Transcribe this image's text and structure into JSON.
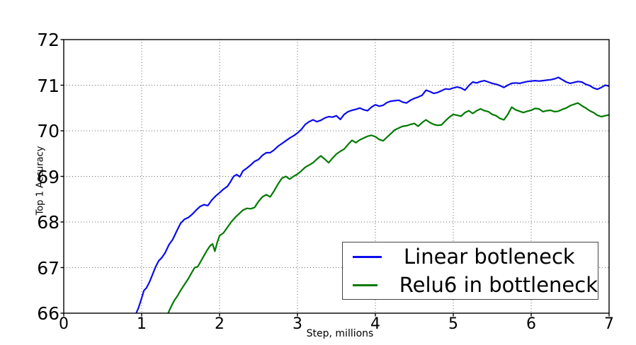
{
  "chart_data": {
    "type": "line",
    "title": "",
    "xlabel": "Step, millions",
    "ylabel": "Top 1 Accuracy",
    "xlim": [
      0,
      7
    ],
    "ylim": [
      66,
      72
    ],
    "x_ticks": [
      "0",
      "1",
      "2",
      "3",
      "4",
      "5",
      "6",
      "7"
    ],
    "y_ticks": [
      "66",
      "67",
      "68",
      "69",
      "70",
      "71",
      "72"
    ],
    "grid": "dotted",
    "legend_position": "lower right",
    "series": [
      {
        "name": "Linear botleneck",
        "color": "#0b0bee",
        "points": [
          [
            0.93,
            66.0
          ],
          [
            0.96,
            66.12
          ],
          [
            1.0,
            66.33
          ],
          [
            1.03,
            66.5
          ],
          [
            1.06,
            66.55
          ],
          [
            1.1,
            66.68
          ],
          [
            1.14,
            66.85
          ],
          [
            1.18,
            67.02
          ],
          [
            1.22,
            67.15
          ],
          [
            1.26,
            67.22
          ],
          [
            1.3,
            67.32
          ],
          [
            1.35,
            67.5
          ],
          [
            1.4,
            67.62
          ],
          [
            1.45,
            67.8
          ],
          [
            1.5,
            67.97
          ],
          [
            1.55,
            68.06
          ],
          [
            1.6,
            68.1
          ],
          [
            1.65,
            68.17
          ],
          [
            1.7,
            68.26
          ],
          [
            1.75,
            68.34
          ],
          [
            1.8,
            68.38
          ],
          [
            1.85,
            68.36
          ],
          [
            1.9,
            68.48
          ],
          [
            1.95,
            68.57
          ],
          [
            2.0,
            68.64
          ],
          [
            2.05,
            68.72
          ],
          [
            2.1,
            68.78
          ],
          [
            2.14,
            68.88
          ],
          [
            2.18,
            69.0
          ],
          [
            2.22,
            69.04
          ],
          [
            2.26,
            68.99
          ],
          [
            2.3,
            69.12
          ],
          [
            2.35,
            69.18
          ],
          [
            2.4,
            69.25
          ],
          [
            2.45,
            69.33
          ],
          [
            2.5,
            69.37
          ],
          [
            2.55,
            69.46
          ],
          [
            2.6,
            69.52
          ],
          [
            2.65,
            69.52
          ],
          [
            2.7,
            69.58
          ],
          [
            2.75,
            69.66
          ],
          [
            2.8,
            69.72
          ],
          [
            2.85,
            69.78
          ],
          [
            2.9,
            69.84
          ],
          [
            2.95,
            69.89
          ],
          [
            3.0,
            69.95
          ],
          [
            3.05,
            70.03
          ],
          [
            3.1,
            70.14
          ],
          [
            3.15,
            70.2
          ],
          [
            3.2,
            70.24
          ],
          [
            3.25,
            70.2
          ],
          [
            3.3,
            70.23
          ],
          [
            3.35,
            70.28
          ],
          [
            3.4,
            70.31
          ],
          [
            3.45,
            70.3
          ],
          [
            3.5,
            70.33
          ],
          [
            3.55,
            70.25
          ],
          [
            3.6,
            70.36
          ],
          [
            3.65,
            70.42
          ],
          [
            3.7,
            70.45
          ],
          [
            3.75,
            70.47
          ],
          [
            3.8,
            70.5
          ],
          [
            3.85,
            70.46
          ],
          [
            3.9,
            70.44
          ],
          [
            3.95,
            70.52
          ],
          [
            4.0,
            70.57
          ],
          [
            4.05,
            70.54
          ],
          [
            4.1,
            70.56
          ],
          [
            4.15,
            70.62
          ],
          [
            4.2,
            70.65
          ],
          [
            4.25,
            70.66
          ],
          [
            4.3,
            70.67
          ],
          [
            4.35,
            70.63
          ],
          [
            4.4,
            70.61
          ],
          [
            4.45,
            70.67
          ],
          [
            4.5,
            70.71
          ],
          [
            4.55,
            70.74
          ],
          [
            4.6,
            70.78
          ],
          [
            4.65,
            70.89
          ],
          [
            4.7,
            70.86
          ],
          [
            4.75,
            70.82
          ],
          [
            4.8,
            70.84
          ],
          [
            4.85,
            70.88
          ],
          [
            4.9,
            70.92
          ],
          [
            4.95,
            70.91
          ],
          [
            5.0,
            70.94
          ],
          [
            5.05,
            70.96
          ],
          [
            5.1,
            70.94
          ],
          [
            5.15,
            70.89
          ],
          [
            5.2,
            70.99
          ],
          [
            5.25,
            71.07
          ],
          [
            5.3,
            71.05
          ],
          [
            5.35,
            71.08
          ],
          [
            5.4,
            71.1
          ],
          [
            5.45,
            71.07
          ],
          [
            5.5,
            71.04
          ],
          [
            5.55,
            71.02
          ],
          [
            5.6,
            70.99
          ],
          [
            5.65,
            70.95
          ],
          [
            5.7,
            71.0
          ],
          [
            5.75,
            71.04
          ],
          [
            5.8,
            71.05
          ],
          [
            5.85,
            71.04
          ],
          [
            5.9,
            71.06
          ],
          [
            5.95,
            71.08
          ],
          [
            6.0,
            71.09
          ],
          [
            6.05,
            71.1
          ],
          [
            6.1,
            71.09
          ],
          [
            6.15,
            71.1
          ],
          [
            6.2,
            71.11
          ],
          [
            6.25,
            71.12
          ],
          [
            6.3,
            71.14
          ],
          [
            6.35,
            71.17
          ],
          [
            6.4,
            71.12
          ],
          [
            6.45,
            71.07
          ],
          [
            6.5,
            71.04
          ],
          [
            6.55,
            71.06
          ],
          [
            6.6,
            71.08
          ],
          [
            6.65,
            71.07
          ],
          [
            6.7,
            71.02
          ],
          [
            6.75,
            70.99
          ],
          [
            6.8,
            70.94
          ],
          [
            6.85,
            70.91
          ],
          [
            6.9,
            70.95
          ],
          [
            6.95,
            71.0
          ],
          [
            7.0,
            70.98
          ]
        ]
      },
      {
        "name": "Relu6 in bottleneck",
        "color": "#007a00",
        "points": [
          [
            1.34,
            66.0
          ],
          [
            1.38,
            66.15
          ],
          [
            1.42,
            66.28
          ],
          [
            1.46,
            66.38
          ],
          [
            1.5,
            66.5
          ],
          [
            1.55,
            66.63
          ],
          [
            1.6,
            66.76
          ],
          [
            1.64,
            66.88
          ],
          [
            1.68,
            67.0
          ],
          [
            1.72,
            67.02
          ],
          [
            1.76,
            67.14
          ],
          [
            1.8,
            67.26
          ],
          [
            1.84,
            67.38
          ],
          [
            1.88,
            67.48
          ],
          [
            1.91,
            67.52
          ],
          [
            1.94,
            67.36
          ],
          [
            1.97,
            67.55
          ],
          [
            2.0,
            67.7
          ],
          [
            2.05,
            67.76
          ],
          [
            2.1,
            67.88
          ],
          [
            2.15,
            68.0
          ],
          [
            2.2,
            68.1
          ],
          [
            2.25,
            68.18
          ],
          [
            2.3,
            68.26
          ],
          [
            2.35,
            68.3
          ],
          [
            2.4,
            68.29
          ],
          [
            2.45,
            68.32
          ],
          [
            2.5,
            68.45
          ],
          [
            2.55,
            68.55
          ],
          [
            2.6,
            68.6
          ],
          [
            2.65,
            68.55
          ],
          [
            2.7,
            68.68
          ],
          [
            2.75,
            68.83
          ],
          [
            2.8,
            68.96
          ],
          [
            2.85,
            69.0
          ],
          [
            2.9,
            68.94
          ],
          [
            2.95,
            69.0
          ],
          [
            3.0,
            69.05
          ],
          [
            3.05,
            69.12
          ],
          [
            3.1,
            69.2
          ],
          [
            3.15,
            69.25
          ],
          [
            3.2,
            69.3
          ],
          [
            3.25,
            69.38
          ],
          [
            3.3,
            69.45
          ],
          [
            3.35,
            69.38
          ],
          [
            3.4,
            69.3
          ],
          [
            3.45,
            69.4
          ],
          [
            3.5,
            69.49
          ],
          [
            3.55,
            69.55
          ],
          [
            3.6,
            69.6
          ],
          [
            3.65,
            69.7
          ],
          [
            3.7,
            69.79
          ],
          [
            3.75,
            69.74
          ],
          [
            3.8,
            69.8
          ],
          [
            3.85,
            69.84
          ],
          [
            3.9,
            69.88
          ],
          [
            3.95,
            69.9
          ],
          [
            4.0,
            69.87
          ],
          [
            4.05,
            69.81
          ],
          [
            4.1,
            69.78
          ],
          [
            4.15,
            69.86
          ],
          [
            4.2,
            69.94
          ],
          [
            4.25,
            70.02
          ],
          [
            4.3,
            70.06
          ],
          [
            4.35,
            70.1
          ],
          [
            4.4,
            70.11
          ],
          [
            4.45,
            70.14
          ],
          [
            4.5,
            70.16
          ],
          [
            4.55,
            70.1
          ],
          [
            4.6,
            70.18
          ],
          [
            4.65,
            70.24
          ],
          [
            4.7,
            70.18
          ],
          [
            4.75,
            70.14
          ],
          [
            4.8,
            70.12
          ],
          [
            4.85,
            70.13
          ],
          [
            4.9,
            70.22
          ],
          [
            4.95,
            70.3
          ],
          [
            5.0,
            70.36
          ],
          [
            5.05,
            70.34
          ],
          [
            5.1,
            70.32
          ],
          [
            5.15,
            70.4
          ],
          [
            5.2,
            70.44
          ],
          [
            5.25,
            70.38
          ],
          [
            5.3,
            70.44
          ],
          [
            5.35,
            70.48
          ],
          [
            5.4,
            70.44
          ],
          [
            5.45,
            70.42
          ],
          [
            5.5,
            70.36
          ],
          [
            5.55,
            70.33
          ],
          [
            5.6,
            70.27
          ],
          [
            5.65,
            70.24
          ],
          [
            5.7,
            70.36
          ],
          [
            5.75,
            70.52
          ],
          [
            5.8,
            70.46
          ],
          [
            5.85,
            70.43
          ],
          [
            5.9,
            70.4
          ],
          [
            5.95,
            70.43
          ],
          [
            6.0,
            70.45
          ],
          [
            6.05,
            70.49
          ],
          [
            6.1,
            70.48
          ],
          [
            6.15,
            70.42
          ],
          [
            6.2,
            70.44
          ],
          [
            6.25,
            70.45
          ],
          [
            6.3,
            70.42
          ],
          [
            6.35,
            70.43
          ],
          [
            6.4,
            70.47
          ],
          [
            6.45,
            70.5
          ],
          [
            6.5,
            70.55
          ],
          [
            6.55,
            70.58
          ],
          [
            6.6,
            70.61
          ],
          [
            6.65,
            70.55
          ],
          [
            6.7,
            70.5
          ],
          [
            6.75,
            70.44
          ],
          [
            6.8,
            70.4
          ],
          [
            6.85,
            70.34
          ],
          [
            6.9,
            70.31
          ],
          [
            6.95,
            70.33
          ],
          [
            7.0,
            70.35
          ]
        ]
      }
    ]
  },
  "colors": {
    "axis": "#000000",
    "grid": "#666666",
    "background": "#ffffff",
    "legend_border": "#444444"
  }
}
